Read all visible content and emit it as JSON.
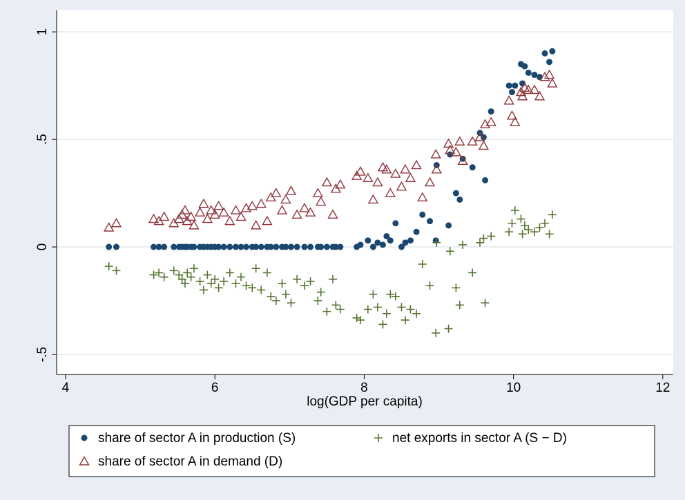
{
  "chart_data": {
    "type": "scatter",
    "x_label": "log(GDP per capita)",
    "xlim": [
      3.88,
      12.14
    ],
    "ylim": [
      -0.593,
      1.1
    ],
    "xticks": [
      4,
      6,
      8,
      10,
      12
    ],
    "yticks": [
      {
        "value": -0.5,
        "label": "-.5"
      },
      0,
      {
        "value": 0.5,
        "label": ".5"
      },
      1
    ],
    "grid": true,
    "x": [
      4.58,
      4.68,
      5.18,
      5.25,
      5.32,
      5.45,
      5.52,
      5.56,
      5.6,
      5.63,
      5.68,
      5.72,
      5.8,
      5.85,
      5.9,
      5.95,
      6.0,
      6.05,
      6.12,
      6.2,
      6.28,
      6.35,
      6.42,
      6.5,
      6.55,
      6.62,
      6.7,
      6.75,
      6.82,
      6.9,
      6.95,
      7.02,
      7.1,
      7.2,
      7.28,
      7.38,
      7.42,
      7.5,
      7.58,
      7.62,
      7.68,
      7.9,
      7.95,
      8.05,
      8.12,
      8.18,
      8.25,
      8.3,
      8.35,
      8.42,
      8.5,
      8.55,
      8.62,
      8.7,
      8.78,
      8.88,
      8.96,
      8.97,
      9.13,
      9.15,
      9.23,
      9.28,
      9.32,
      9.45,
      9.55,
      9.6,
      9.62,
      9.7,
      9.94,
      9.98,
      10.02,
      10.1,
      10.12,
      10.15,
      10.2,
      10.28,
      10.35,
      10.42,
      10.48,
      10.52
    ],
    "series": [
      {
        "name": "share of sector A in production (S)",
        "color": "#1a476f",
        "marker": "circle",
        "values": [
          0,
          0,
          0,
          0,
          0,
          0,
          0,
          0,
          0,
          0,
          0,
          0,
          0,
          0,
          0,
          0,
          0,
          0,
          0,
          0,
          0,
          0,
          0,
          0,
          0,
          0,
          0,
          0,
          0,
          0,
          0,
          0,
          0,
          0,
          0,
          0,
          0,
          0,
          0,
          0,
          0,
          0,
          0.01,
          0.03,
          0,
          0.02,
          0.01,
          0.05,
          0.03,
          0.11,
          0,
          0.02,
          0.03,
          0.07,
          0.15,
          0.12,
          0.03,
          0.38,
          0.1,
          0.43,
          0.25,
          0.22,
          0.41,
          0.37,
          0.53,
          0.51,
          0.31,
          0.63,
          0.75,
          0.72,
          0.75,
          0.85,
          0.76,
          0.84,
          0.81,
          0.8,
          0.79,
          0.9,
          0.86,
          0.91
        ]
      },
      {
        "name": "net exports in sector A (S − D)",
        "color": "#55752f",
        "marker": "plus",
        "values": [
          -0.09,
          -0.11,
          -0.13,
          -0.12,
          -0.14,
          -0.11,
          -0.13,
          -0.15,
          -0.17,
          -0.12,
          -0.14,
          -0.1,
          -0.16,
          -0.2,
          -0.13,
          -0.17,
          -0.15,
          -0.19,
          -0.16,
          -0.12,
          -0.17,
          -0.14,
          -0.18,
          -0.19,
          -0.1,
          -0.2,
          -0.12,
          -0.23,
          -0.25,
          -0.17,
          -0.22,
          -0.26,
          -0.15,
          -0.18,
          -0.16,
          -0.25,
          -0.21,
          -0.3,
          -0.15,
          -0.27,
          -0.29,
          -0.33,
          -0.34,
          -0.29,
          -0.22,
          -0.28,
          -0.36,
          -0.31,
          -0.22,
          -0.23,
          -0.28,
          -0.34,
          -0.29,
          -0.31,
          -0.08,
          -0.18,
          -0.4,
          0.02,
          -0.38,
          -0.02,
          -0.19,
          -0.27,
          0.01,
          -0.12,
          0.02,
          0.04,
          -0.26,
          0.05,
          0.07,
          0.11,
          0.17,
          0.13,
          0.06,
          0.1,
          0.08,
          0.07,
          0.09,
          0.11,
          0.06,
          0.15
        ]
      },
      {
        "name": "share of sector A in demand (D)",
        "color": "#90353b",
        "marker": "triangle",
        "values": [
          0.09,
          0.11,
          0.13,
          0.12,
          0.14,
          0.11,
          0.13,
          0.15,
          0.17,
          0.12,
          0.14,
          0.1,
          0.16,
          0.2,
          0.13,
          0.17,
          0.15,
          0.19,
          0.16,
          0.12,
          0.17,
          0.14,
          0.18,
          0.19,
          0.1,
          0.2,
          0.12,
          0.23,
          0.25,
          0.17,
          0.22,
          0.26,
          0.15,
          0.18,
          0.16,
          0.25,
          0.21,
          0.3,
          0.15,
          0.27,
          0.29,
          0.33,
          0.35,
          0.32,
          0.22,
          0.3,
          0.37,
          0.36,
          0.25,
          0.34,
          0.28,
          0.36,
          0.32,
          0.38,
          0.23,
          0.3,
          0.43,
          0.36,
          0.48,
          0.45,
          0.44,
          0.49,
          0.4,
          0.49,
          0.51,
          0.47,
          0.57,
          0.58,
          0.68,
          0.61,
          0.58,
          0.72,
          0.7,
          0.74,
          0.73,
          0.73,
          0.7,
          0.79,
          0.8,
          0.76
        ]
      }
    ]
  }
}
